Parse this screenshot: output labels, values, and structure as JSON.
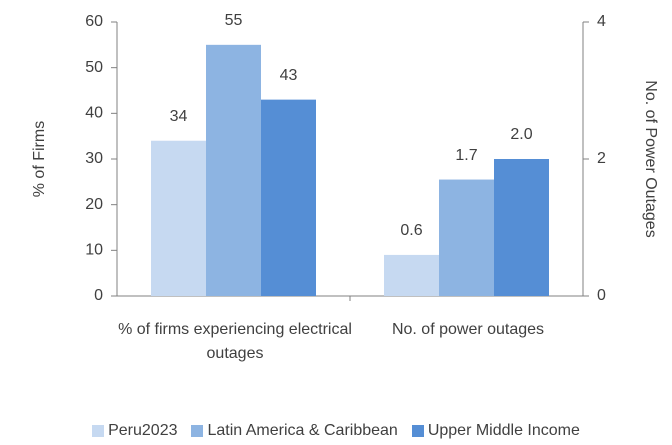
{
  "chart_data": {
    "type": "bar",
    "categories": [
      "% of firms experiencing electrical outages",
      "No. of power outages"
    ],
    "category_axes": [
      "y",
      "y2"
    ],
    "series": [
      {
        "name": "Peru2023",
        "color": "#c6d9f1",
        "values": [
          34,
          0.6
        ],
        "value_labels": [
          "34",
          "0.6"
        ]
      },
      {
        "name": "Latin America & Caribbean",
        "color": "#8db4e2",
        "values": [
          55,
          1.7
        ],
        "value_labels": [
          "55",
          "1.7"
        ]
      },
      {
        "name": "Upper Middle Income",
        "color": "#558ed5",
        "values": [
          43,
          2.0
        ],
        "value_labels": [
          "43",
          "2.0"
        ]
      }
    ],
    "ylabel": "% of Firms",
    "y2label": "No. of Power Outages",
    "ylim": [
      0,
      60
    ],
    "yticks": [
      0,
      10,
      20,
      30,
      40,
      50,
      60
    ],
    "y2lim": [
      0,
      4
    ],
    "y2ticks": [
      0,
      2,
      4
    ],
    "legend": "bottom"
  }
}
